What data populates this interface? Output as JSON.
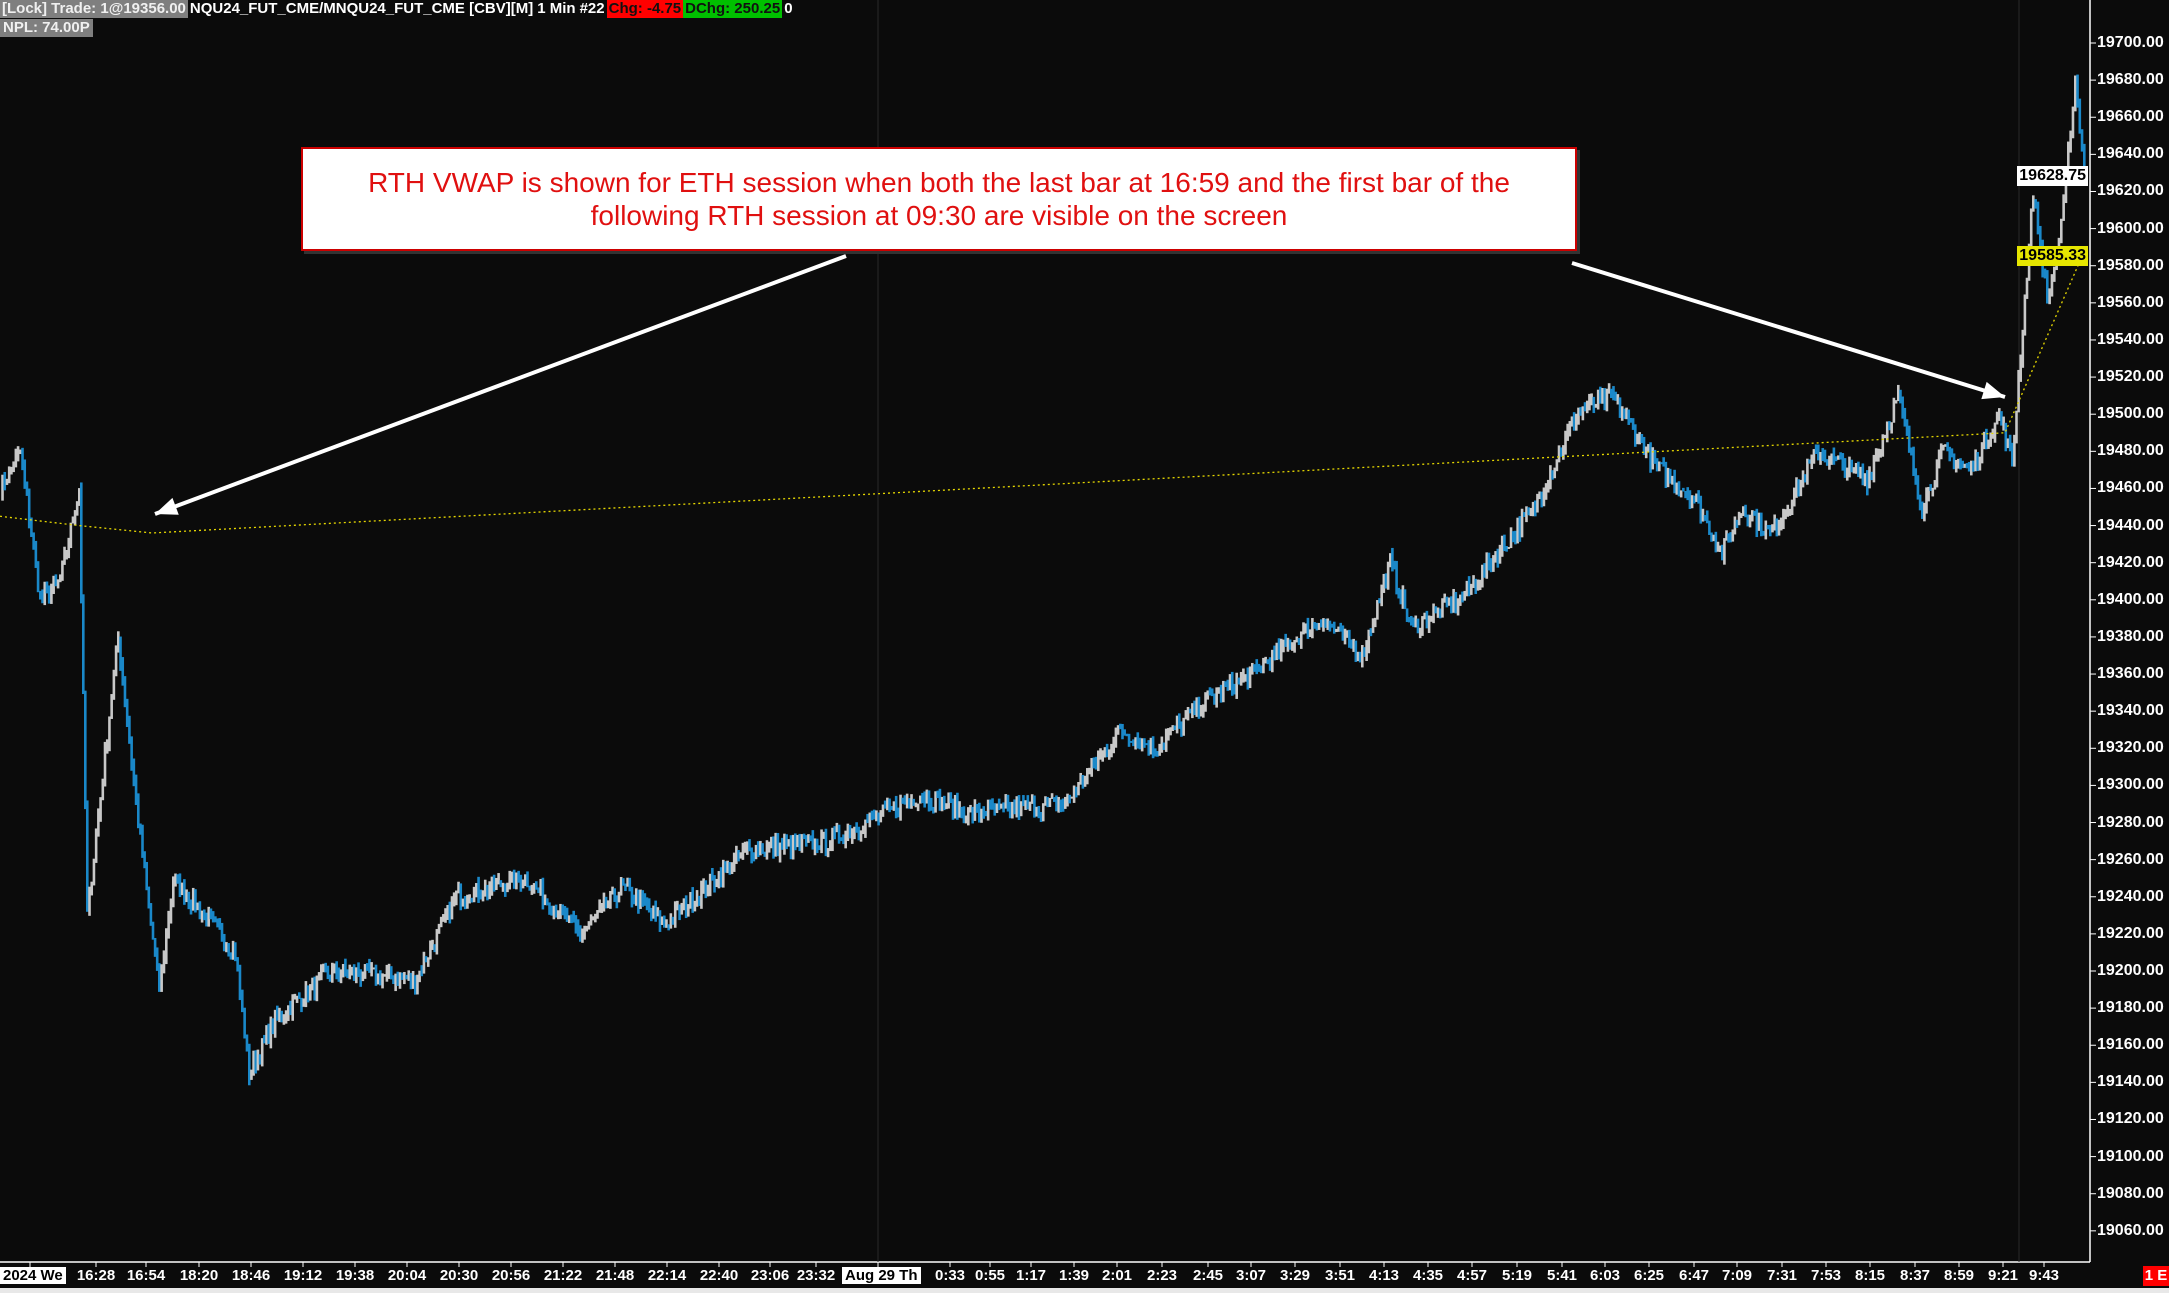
{
  "header": {
    "lock_trade": "[Lock] Trade: 1@19356.00",
    "symbol": "NQU24_FUT_CME/MNQU24_FUT_CME [CBV][M]",
    "interval": "1 Min",
    "bar_number": "#22",
    "chg": "Chg: -4.75",
    "dchg": "DChg: 250.25",
    "extra": "0",
    "npl": "NPL: 74.00P"
  },
  "annotation": {
    "line1": "RTH VWAP is shown for ETH session when both the last bar at 16:59 and the first bar of the",
    "line2": "following RTH session at 09:30 are visible on the screen"
  },
  "price_axis": {
    "ticks": [
      "19700.00",
      "19680.00",
      "19660.00",
      "19640.00",
      "19620.00",
      "19600.00",
      "19580.00",
      "19560.00",
      "19540.00",
      "19520.00",
      "19500.00",
      "19480.00",
      "19460.00",
      "19440.00",
      "19420.00",
      "19400.00",
      "19380.00",
      "19360.00",
      "19340.00",
      "19320.00",
      "19300.00",
      "19280.00",
      "19260.00",
      "19240.00",
      "19220.00",
      "19200.00",
      "19180.00",
      "19160.00",
      "19140.00",
      "19120.00",
      "19100.00",
      "19080.00",
      "19060.00"
    ],
    "last_price": "19628.75",
    "vwap_price": "19585.33"
  },
  "time_axis": {
    "labels": [
      "2024 We",
      "16:28",
      "16:54",
      "18:20",
      "18:46",
      "19:12",
      "19:38",
      "20:04",
      "20:30",
      "20:56",
      "21:22",
      "21:48",
      "22:14",
      "22:40",
      "23:06",
      "23:32",
      "Aug 29  Th",
      "0:33",
      "0:55",
      "1:17",
      "1:39",
      "2:01",
      "2:23",
      "2:45",
      "3:07",
      "3:29",
      "3:51",
      "4:13",
      "4:35",
      "4:57",
      "5:19",
      "5:41",
      "6:03",
      "6:25",
      "6:47",
      "7:09",
      "7:31",
      "7:53",
      "8:15",
      "8:37",
      "8:59",
      "9:21",
      "9:43"
    ],
    "corner_label": "1 E"
  },
  "colors": {
    "up_bar": "#c8c8c8",
    "down_bar": "#1a88c9",
    "vwap": "#e6d800",
    "annotation_text": "#e01010",
    "background": "#0b0b0b"
  },
  "chart_data": {
    "type": "candlestick-line",
    "ylim": [
      19040,
      19710
    ],
    "price_path": [
      19460,
      19480,
      19400,
      19410,
      19460,
      19230,
      19380,
      19280,
      19190,
      19250,
      19210,
      19145,
      19175,
      19200,
      19195,
      19240,
      19250,
      19220,
      19245,
      19225,
      19265,
      19270,
      19295,
      19285,
      19290,
      19330,
      19320,
      19345,
      19360,
      19390,
      19370,
      19420,
      19385,
      19400,
      19450,
      19500,
      19510,
      19470,
      19455,
      19425,
      19450,
      19435,
      19480,
      19465,
      19510,
      19450,
      19480,
      19470,
      19500,
      19475,
      19620,
      19560,
      19600,
      19680,
      19630
    ],
    "vwap_path": [
      19445,
      19440,
      19436,
      19490,
      19585
    ]
  }
}
